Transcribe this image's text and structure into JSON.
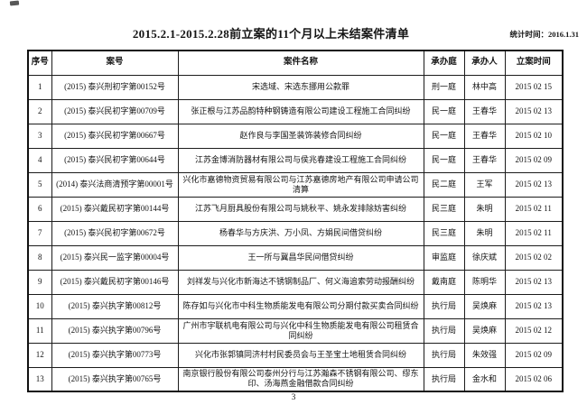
{
  "page": {
    "title": "2015.2.1-2015.2.28前立案的11个月以上未结案件清单",
    "stats_label": "统计时间：2016.1.31",
    "page_number": "3"
  },
  "table": {
    "headers": [
      "序号",
      "案号",
      "案件名称",
      "承办庭",
      "承办人",
      "立案时间"
    ],
    "rows": [
      {
        "no": "1",
        "case_number": "(2015) 泰兴刑初字第00152号",
        "case_name": "宋选域、宋选东挪用公款罪",
        "court": "刑一庭",
        "handler": "林中高",
        "filing_date": "2015 02 15"
      },
      {
        "no": "2",
        "case_number": "(2015) 泰兴民初字第00709号",
        "case_name": "张正根与江苏品韵特种钢铸造有限公司建设工程施工合同纠纷",
        "court": "民一庭",
        "handler": "王春华",
        "filing_date": "2015 02 13"
      },
      {
        "no": "3",
        "case_number": "(2015) 泰兴民初字第00667号",
        "case_name": "赵作良与李国圣装饰装修合同纠纷",
        "court": "民一庭",
        "handler": "王春华",
        "filing_date": "2015 02 10"
      },
      {
        "no": "4",
        "case_number": "(2015) 泰兴民初字第00644号",
        "case_name": "江苏金博消防器材有限公司与侯兆春建设工程施工合同纠纷",
        "court": "民一庭",
        "handler": "王春华",
        "filing_date": "2015 02 09"
      },
      {
        "no": "5",
        "case_number": "(2014) 泰兴法商清预字第00001号",
        "case_name": "兴化市嘉德物资贸易有限公司与江苏嘉德房地产有限公司申请公司清算",
        "court": "民二庭",
        "handler": "王军",
        "filing_date": "2015 02 13"
      },
      {
        "no": "6",
        "case_number": "(2015) 泰兴戴民初字第00144号",
        "case_name": "江苏飞月厨具股份有限公司与姚秋平、姚永发排除妨害纠纷",
        "court": "民三庭",
        "handler": "朱明",
        "filing_date": "2015 02 11"
      },
      {
        "no": "7",
        "case_number": "(2015) 泰兴民初字第00672号",
        "case_name": "杨春华与方庆洪、万小凤、方娟民间借贷纠纷",
        "court": "民三庭",
        "handler": "朱明",
        "filing_date": "2015 02 11"
      },
      {
        "no": "8",
        "case_number": "(2015) 泰兴民一监字第00004号",
        "case_name": "王一所与冀昌华民间借贷纠纷",
        "court": "审监庭",
        "handler": "徐庆斌",
        "filing_date": "2015 02 02"
      },
      {
        "no": "9",
        "case_number": "(2015) 泰兴戴民初字第00146号",
        "case_name": "刘祥发与兴化市新海达不锈钢制品厂、何义海追索劳动报酬纠纷",
        "court": "戴南庭",
        "handler": "陈明华",
        "filing_date": "2015 02 13"
      },
      {
        "no": "10",
        "case_number": "(2015) 泰兴执字第00812号",
        "case_name": "陈存如与兴化市中科生物质能发电有限公司分期付款买卖合同纠纷",
        "court": "执行局",
        "handler": "吴焕麻",
        "filing_date": "2015 02 13"
      },
      {
        "no": "11",
        "case_number": "(2015) 泰兴执字第00796号",
        "case_name": "广州市宇联机电有限公司与兴化中科生物质能发电有限公司租赁合同纠纷",
        "court": "执行局",
        "handler": "吴焕麻",
        "filing_date": "2015 02 12"
      },
      {
        "no": "12",
        "case_number": "(2015) 泰兴执字第00773号",
        "case_name": "兴化市张郭镇同济村村民委员会与王圣宝土地租赁合同纠纷",
        "court": "执行局",
        "handler": "朱效强",
        "filing_date": "2015 02 09"
      },
      {
        "no": "13",
        "case_number": "(2015) 泰兴执字第00765号",
        "case_name": "南京银行股份有限公司泰州分行与江苏瀚森不锈钢有限公司、缪东印、汤海燕金融借款合同纠纷",
        "court": "执行局",
        "handler": "金水和",
        "filing_date": "2015 02 06"
      }
    ]
  }
}
